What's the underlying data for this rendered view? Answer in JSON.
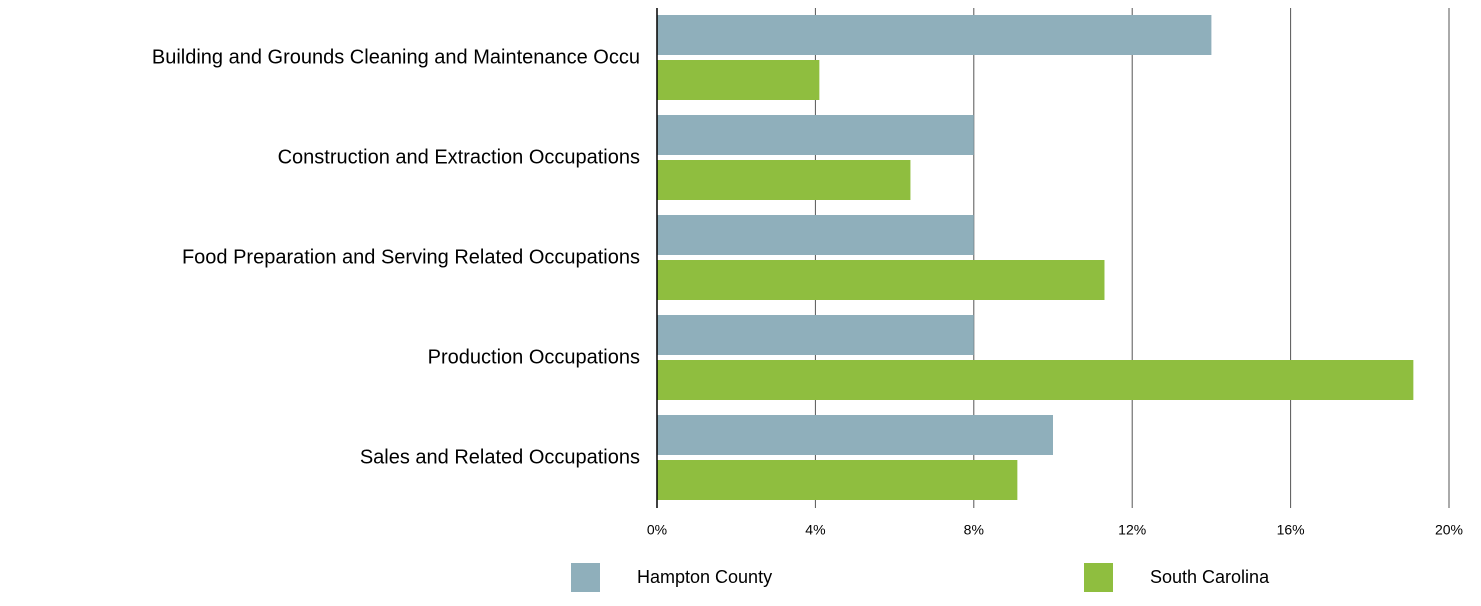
{
  "chart_data": {
    "type": "bar",
    "orientation": "horizontal",
    "categories": [
      "Building and Grounds Cleaning and Maintenance Occu",
      "Construction and Extraction Occupations",
      "Food Preparation and Serving Related Occupations",
      "Production Occupations",
      "Sales and Related Occupations"
    ],
    "series": [
      {
        "name": "Hampton County",
        "color": "#8fafbb",
        "values": [
          14,
          8,
          8,
          8,
          10
        ]
      },
      {
        "name": "South Carolina",
        "color": "#8fbe3f",
        "values": [
          4.1,
          6.4,
          11.3,
          19.1,
          9.1
        ]
      }
    ],
    "xlim": [
      0,
      20
    ],
    "xticks": [
      {
        "value": 0,
        "label": "0%"
      },
      {
        "value": 4,
        "label": "4%"
      },
      {
        "value": 8,
        "label": "8%"
      },
      {
        "value": 12,
        "label": "12%"
      },
      {
        "value": 16,
        "label": "16%"
      },
      {
        "value": 20,
        "label": "20%"
      }
    ],
    "grid": true
  }
}
